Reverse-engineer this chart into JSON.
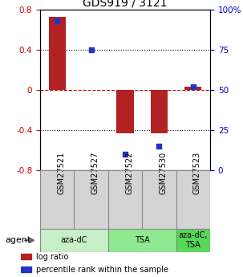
{
  "title": "GDS919 / 3121",
  "samples": [
    "GSM27521",
    "GSM27527",
    "GSM27522",
    "GSM27530",
    "GSM27523"
  ],
  "log_ratios": [
    0.73,
    0.0,
    -0.43,
    -0.43,
    0.03
  ],
  "percentile_ranks": [
    93,
    75,
    10,
    15,
    52
  ],
  "ylim_left": [
    -0.8,
    0.8
  ],
  "ylim_right": [
    0,
    100
  ],
  "bar_color": "#b22222",
  "dot_color": "#2233cc",
  "groups": [
    {
      "label": "aza-dC",
      "start": 0,
      "end": 2,
      "color": "#c8f0c8"
    },
    {
      "label": "TSA",
      "start": 2,
      "end": 4,
      "color": "#90e890"
    },
    {
      "label": "aza-dC,\nTSA",
      "start": 4,
      "end": 5,
      "color": "#58d858"
    }
  ],
  "agent_label": "agent",
  "legend_items": [
    {
      "color": "#b22222",
      "label": "log ratio"
    },
    {
      "color": "#2233cc",
      "label": "percentile rank within the sample"
    }
  ],
  "bar_width": 0.5,
  "yticks_left": [
    -0.8,
    -0.4,
    0,
    0.4,
    0.8
  ],
  "yticks_right": [
    0,
    25,
    50,
    75,
    100
  ],
  "ytick_labels_left": [
    "-0.8",
    "-0.4",
    "0",
    "0.4",
    "0.8"
  ],
  "ytick_labels_right": [
    "0",
    "25",
    "50",
    "75",
    "100%"
  ],
  "left_tick_color": "#cc0000",
  "right_tick_color": "#0000cc",
  "hlines": [
    -0.4,
    0.0,
    0.4
  ],
  "hline_styles": [
    "dotted",
    "dashed",
    "dotted"
  ],
  "hline_colors": [
    "black",
    "#cc0000",
    "black"
  ]
}
